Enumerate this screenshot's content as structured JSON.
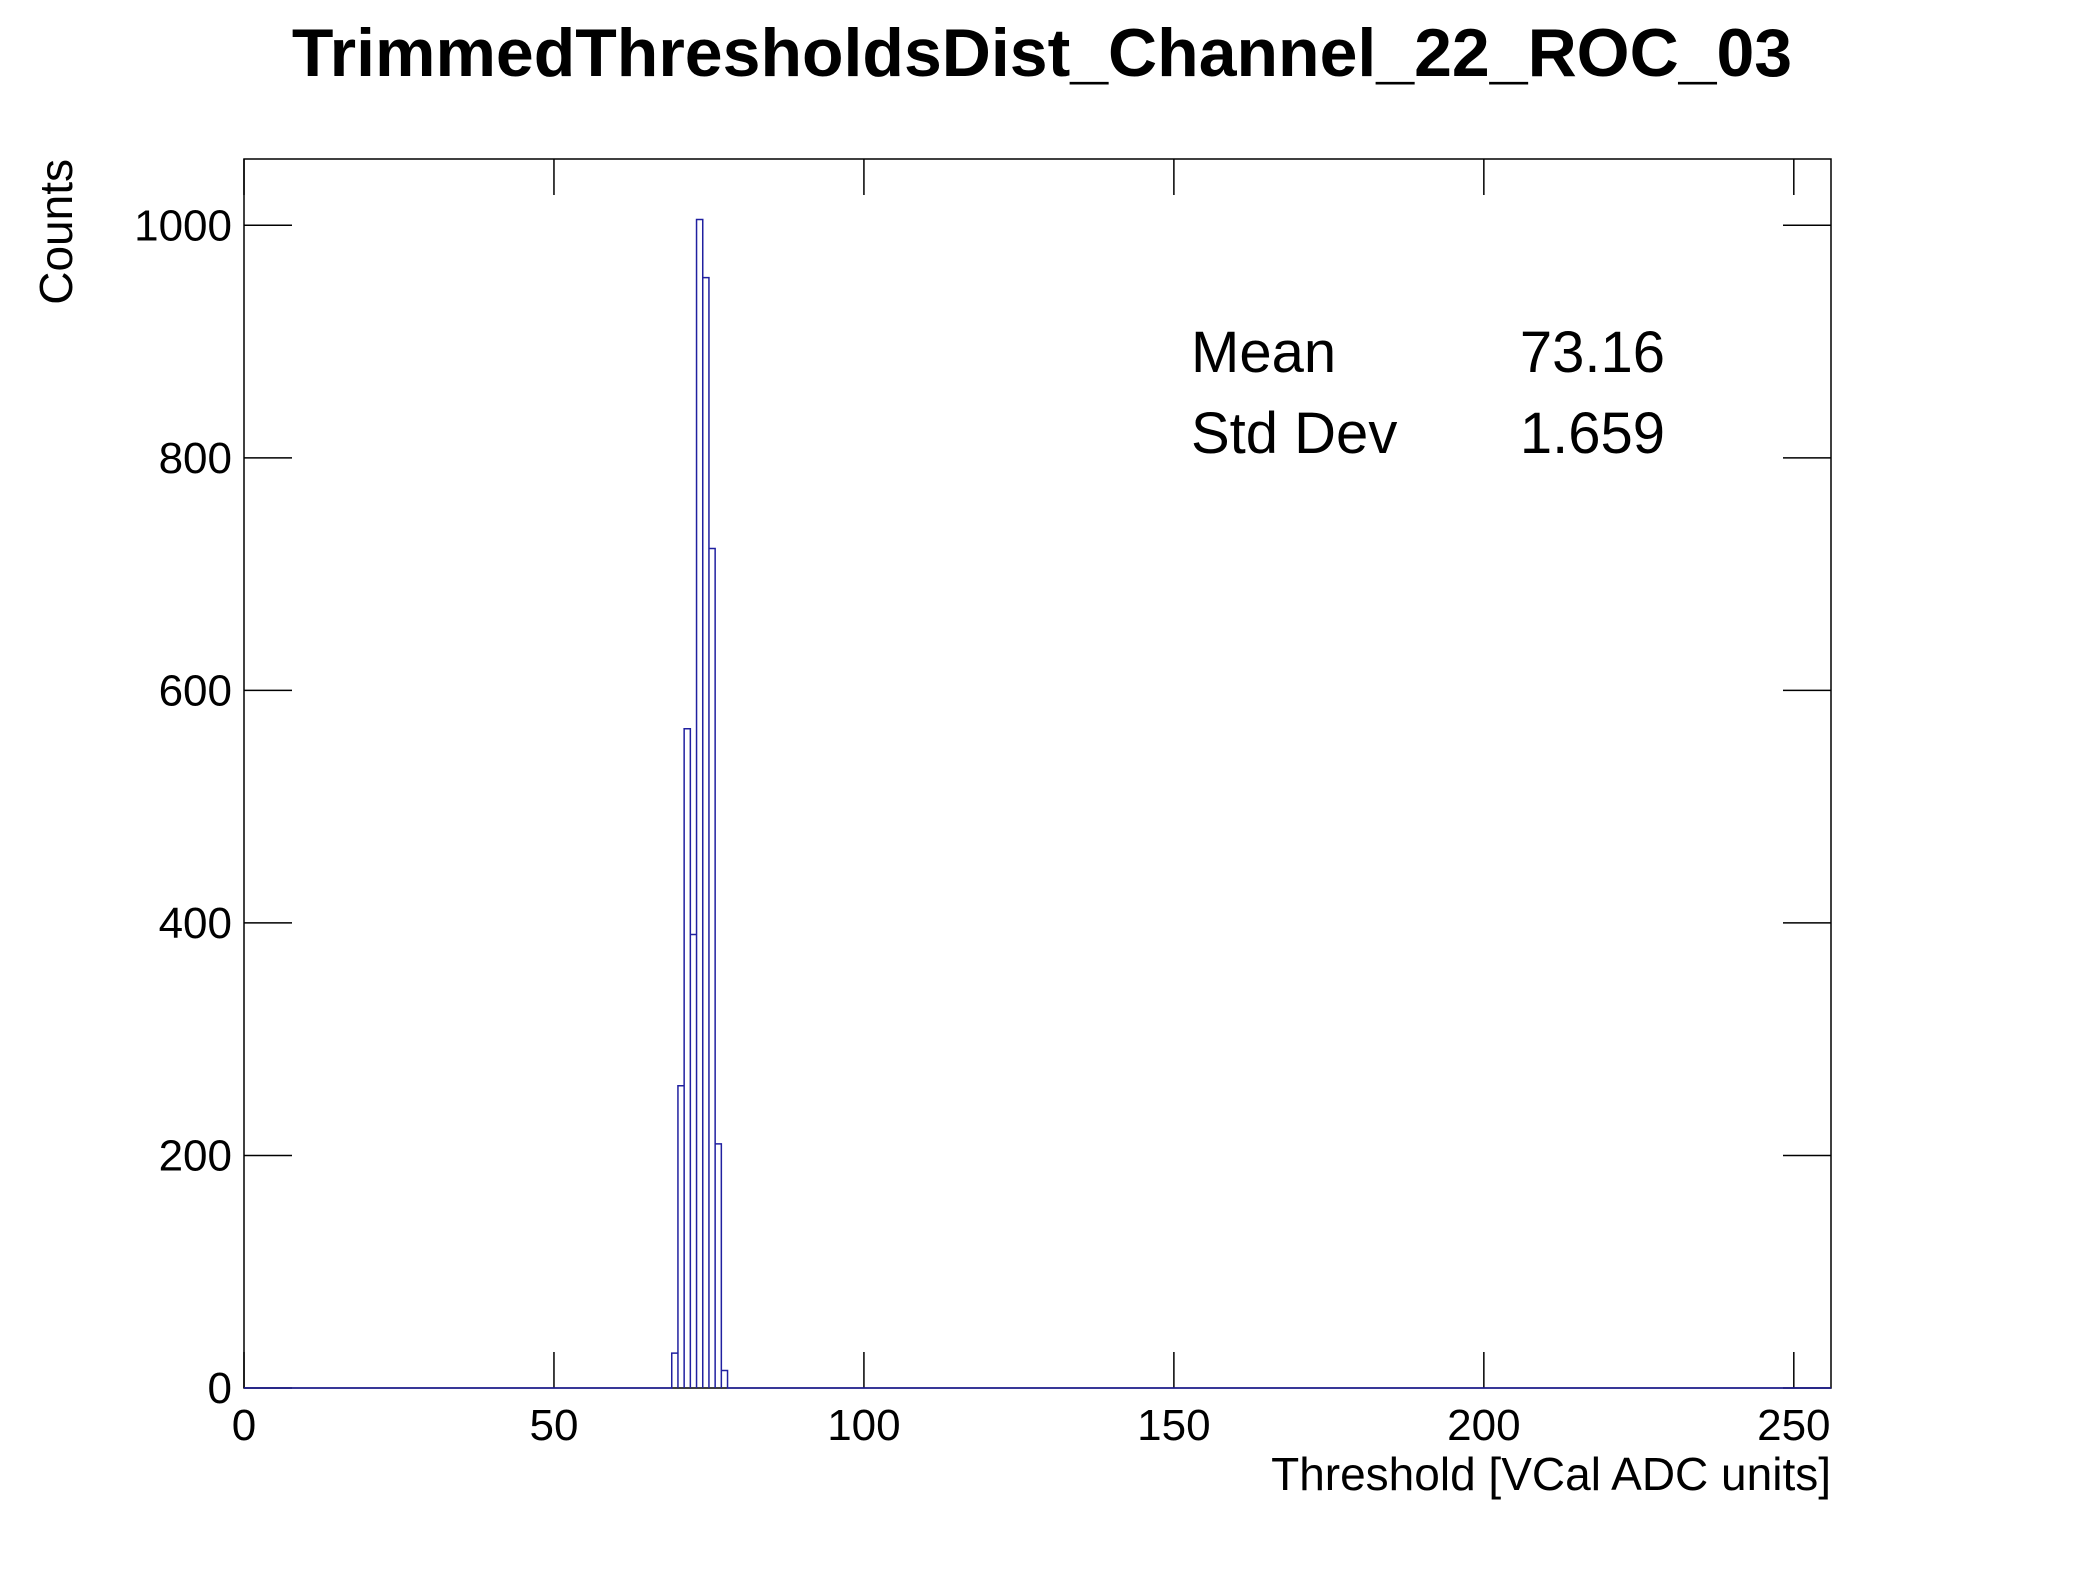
{
  "chart_data": {
    "type": "histogram",
    "title": "TrimmedThresholdsDist_Channel_22_ROC_03",
    "x_label": "Threshold [VCal ADC units]",
    "y_label": "Counts",
    "bins": [
      69,
      70,
      71,
      72,
      73,
      74,
      75,
      76,
      77,
      78
    ],
    "values": [
      30,
      260,
      567,
      390,
      1005,
      955,
      722,
      210,
      15
    ],
    "color": "#2020a0",
    "xlim": [
      0,
      256
    ],
    "xticks": [
      0,
      50,
      100,
      150,
      200,
      250
    ],
    "ylim": [
      0,
      1057
    ],
    "yticks": [
      0,
      200,
      400,
      600,
      800,
      1000
    ],
    "stats": [
      {
        "name": "Mean",
        "value": "73.16"
      },
      {
        "name": "Std Dev",
        "value": "1.659"
      }
    ]
  }
}
